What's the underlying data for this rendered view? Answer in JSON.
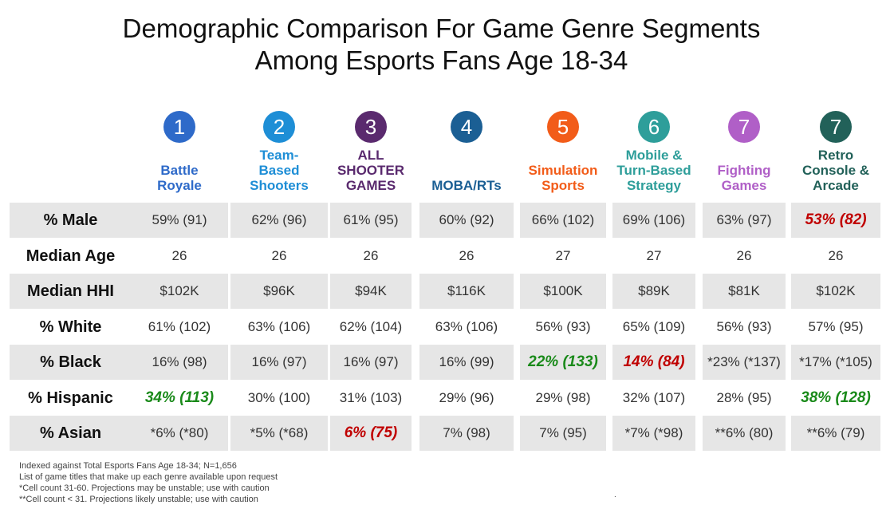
{
  "chart_data": {
    "type": "table",
    "title_line1": "Demographic Comparison For Game Genre Segments",
    "title_line2": "Among Esports Fans Age 18-34",
    "columns": [
      {
        "number": "1",
        "name": "Battle\nRoyale",
        "color": "#2e6ac9"
      },
      {
        "number": "2",
        "name": "Team-\nBased\nShooters",
        "color": "#1e8ed6"
      },
      {
        "number": "3",
        "name": "ALL\nSHOOTER\nGAMES",
        "color": "#5a2a6e"
      },
      {
        "number": "4",
        "name": "MOBA/RTs",
        "color": "#1b5f94"
      },
      {
        "number": "5",
        "name": "Simulation\nSports",
        "color": "#f25c19"
      },
      {
        "number": "6",
        "name": "Mobile &\nTurn-Based\nStrategy",
        "color": "#2e9e9a"
      },
      {
        "number": "7",
        "name": "Fighting\nGames",
        "color": "#b05fc7"
      },
      {
        "number": "7",
        "name": "Retro\nConsole &\nArcade",
        "color": "#226159"
      }
    ],
    "rows": [
      {
        "label": "% Male",
        "shaded": true,
        "cells": [
          {
            "text": "59% (91)",
            "style": "normal"
          },
          {
            "text": "62% (96)",
            "style": "normal"
          },
          {
            "text": "61% (95)",
            "style": "normal"
          },
          {
            "text": "60% (92)",
            "style": "normal"
          },
          {
            "text": "66% (102)",
            "style": "normal"
          },
          {
            "text": "69% (106)",
            "style": "normal"
          },
          {
            "text": "63% (97)",
            "style": "normal"
          },
          {
            "text": "53% (82)",
            "style": "red"
          }
        ]
      },
      {
        "label": "Median Age",
        "shaded": false,
        "cells": [
          {
            "text": "26",
            "style": "normal"
          },
          {
            "text": "26",
            "style": "normal"
          },
          {
            "text": "26",
            "style": "normal"
          },
          {
            "text": "26",
            "style": "normal"
          },
          {
            "text": "27",
            "style": "normal"
          },
          {
            "text": "27",
            "style": "normal"
          },
          {
            "text": "26",
            "style": "normal"
          },
          {
            "text": "26",
            "style": "normal"
          }
        ]
      },
      {
        "label": "Median HHI",
        "shaded": true,
        "cells": [
          {
            "text": "$102K",
            "style": "normal"
          },
          {
            "text": "$96K",
            "style": "normal"
          },
          {
            "text": "$94K",
            "style": "normal"
          },
          {
            "text": "$116K",
            "style": "normal"
          },
          {
            "text": "$100K",
            "style": "normal"
          },
          {
            "text": "$89K",
            "style": "normal"
          },
          {
            "text": "$81K",
            "style": "normal"
          },
          {
            "text": "$102K",
            "style": "normal"
          }
        ]
      },
      {
        "label": "% White",
        "shaded": false,
        "cells": [
          {
            "text": "61% (102)",
            "style": "normal"
          },
          {
            "text": "63% (106)",
            "style": "normal"
          },
          {
            "text": "62% (104)",
            "style": "normal"
          },
          {
            "text": "63% (106)",
            "style": "normal"
          },
          {
            "text": "56% (93)",
            "style": "normal"
          },
          {
            "text": "65% (109)",
            "style": "normal"
          },
          {
            "text": "56% (93)",
            "style": "normal"
          },
          {
            "text": "57% (95)",
            "style": "normal"
          }
        ]
      },
      {
        "label": "% Black",
        "shaded": true,
        "cells": [
          {
            "text": "16% (98)",
            "style": "normal"
          },
          {
            "text": "16% (97)",
            "style": "normal"
          },
          {
            "text": "16% (97)",
            "style": "normal"
          },
          {
            "text": "16% (99)",
            "style": "normal"
          },
          {
            "text": "22% (133)",
            "style": "green"
          },
          {
            "text": "14% (84)",
            "style": "red"
          },
          {
            "text": "*23% (*137)",
            "style": "normal"
          },
          {
            "text": "*17% (*105)",
            "style": "normal"
          }
        ]
      },
      {
        "label": "% Hispanic",
        "shaded": false,
        "cells": [
          {
            "text": "34% (113)",
            "style": "green"
          },
          {
            "text": "30% (100)",
            "style": "normal"
          },
          {
            "text": "31% (103)",
            "style": "normal"
          },
          {
            "text": "29% (96)",
            "style": "normal"
          },
          {
            "text": "29% (98)",
            "style": "normal"
          },
          {
            "text": "32% (107)",
            "style": "normal"
          },
          {
            "text": "28% (95)",
            "style": "normal"
          },
          {
            "text": "38% (128)",
            "style": "green"
          }
        ]
      },
      {
        "label": "% Asian",
        "shaded": true,
        "cells": [
          {
            "text": "*6% (*80)",
            "style": "normal"
          },
          {
            "text": "*5% (*68)",
            "style": "normal"
          },
          {
            "text": "6% (75)",
            "style": "red"
          },
          {
            "text": "7% (98)",
            "style": "normal"
          },
          {
            "text": "7% (95)",
            "style": "normal"
          },
          {
            "text": "*7% (*98)",
            "style": "normal"
          },
          {
            "text": "**6% (80)",
            "style": "normal"
          },
          {
            "text": "**6% (79)",
            "style": "normal"
          }
        ]
      }
    ],
    "notes": [
      "Indexed against Total Esports Fans Age 18-34; N=1,656",
      "List of game titles that make up each genre available upon request",
      "*Cell count 31-60. Projections may be unstable; use with caution",
      "**Cell count < 31. Projections likely unstable; use with caution"
    ],
    "footer_mark": "."
  }
}
